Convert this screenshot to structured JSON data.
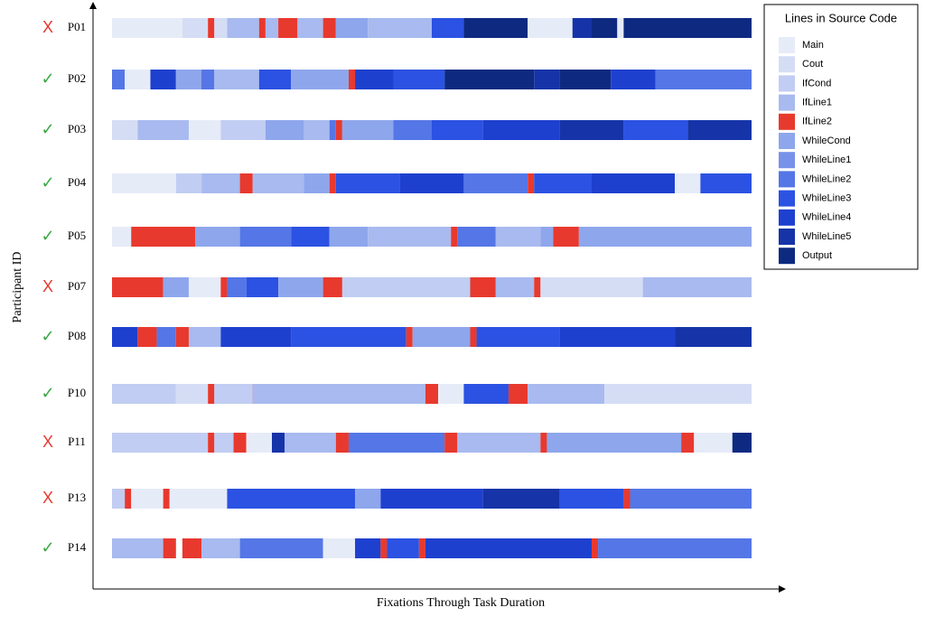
{
  "chart_data": {
    "type": "sequence",
    "xlabel": "Fixations Through Task Duration",
    "ylabel": "Participant ID",
    "xlim": [
      0,
      100
    ],
    "legend": {
      "title": "Lines in Source Code",
      "items": [
        {
          "name": "Main",
          "color": "#e6ebf8"
        },
        {
          "name": "Cout",
          "color": "#d5ddf5"
        },
        {
          "name": "IfCond",
          "color": "#c1cdf2"
        },
        {
          "name": "IfLine1",
          "color": "#a8baef"
        },
        {
          "name": "IfLine2",
          "color": "#e8392e"
        },
        {
          "name": "WhileCond",
          "color": "#8ea6ec"
        },
        {
          "name": "WhileLine1",
          "color": "#7892ea"
        },
        {
          "name": "WhileLine2",
          "color": "#5476e6"
        },
        {
          "name": "WhileLine3",
          "color": "#2b52e2"
        },
        {
          "name": "WhileLine4",
          "color": "#1e40cf"
        },
        {
          "name": "WhileLine5",
          "color": "#1634a8"
        },
        {
          "name": "Output",
          "color": "#0d2a80"
        }
      ]
    },
    "participants": [
      {
        "id": "P01",
        "result": "X",
        "segments": [
          [
            0,
            0,
            11
          ],
          [
            1,
            11,
            15
          ],
          [
            4,
            15,
            16
          ],
          [
            1,
            16,
            18
          ],
          [
            3,
            18,
            23
          ],
          [
            4,
            23,
            24
          ],
          [
            3,
            24,
            26
          ],
          [
            4,
            26,
            29
          ],
          [
            3,
            29,
            33
          ],
          [
            4,
            33,
            35
          ],
          [
            5,
            35,
            40
          ],
          [
            3,
            40,
            50
          ],
          [
            8,
            50,
            55
          ],
          [
            11,
            55,
            65
          ],
          [
            0,
            65,
            72
          ],
          [
            10,
            72,
            75
          ],
          [
            11,
            75,
            79
          ],
          [
            0,
            79,
            80
          ],
          [
            11,
            80,
            100
          ]
        ]
      },
      {
        "id": "P02",
        "result": "✓",
        "segments": [
          [
            7,
            0,
            2
          ],
          [
            0,
            2,
            6
          ],
          [
            9,
            6,
            10
          ],
          [
            5,
            10,
            14
          ],
          [
            4,
            14,
            15
          ],
          [
            7,
            14,
            16
          ],
          [
            3,
            16,
            23
          ],
          [
            8,
            23,
            28
          ],
          [
            5,
            28,
            37
          ],
          [
            4,
            37,
            38
          ],
          [
            9,
            38,
            44
          ],
          [
            8,
            44,
            52
          ],
          [
            11,
            52,
            66
          ],
          [
            10,
            66,
            70
          ],
          [
            11,
            70,
            78
          ],
          [
            9,
            78,
            85
          ],
          [
            7,
            85,
            100
          ]
        ]
      },
      {
        "id": "P03",
        "result": "✓",
        "segments": [
          [
            1,
            0,
            4
          ],
          [
            3,
            4,
            12
          ],
          [
            0,
            12,
            17
          ],
          [
            2,
            17,
            24
          ],
          [
            5,
            24,
            30
          ],
          [
            3,
            30,
            34
          ],
          [
            7,
            34,
            35
          ],
          [
            4,
            35,
            36
          ],
          [
            5,
            36,
            44
          ],
          [
            7,
            44,
            50
          ],
          [
            8,
            50,
            58
          ],
          [
            9,
            58,
            70
          ],
          [
            10,
            70,
            80
          ],
          [
            8,
            80,
            90
          ],
          [
            10,
            90,
            100
          ]
        ]
      },
      {
        "id": "P04",
        "result": "✓",
        "segments": [
          [
            0,
            0,
            10
          ],
          [
            2,
            10,
            14
          ],
          [
            3,
            14,
            20
          ],
          [
            4,
            20,
            22
          ],
          [
            3,
            22,
            30
          ],
          [
            5,
            30,
            34
          ],
          [
            4,
            34,
            35
          ],
          [
            8,
            35,
            45
          ],
          [
            9,
            45,
            55
          ],
          [
            7,
            55,
            65
          ],
          [
            4,
            65,
            66
          ],
          [
            8,
            66,
            75
          ],
          [
            9,
            75,
            88
          ],
          [
            0,
            88,
            92
          ],
          [
            8,
            92,
            100
          ]
        ]
      },
      {
        "id": "P05",
        "result": "✓",
        "segments": [
          [
            0,
            0,
            3
          ],
          [
            4,
            3,
            13
          ],
          [
            5,
            13,
            20
          ],
          [
            7,
            20,
            28
          ],
          [
            8,
            28,
            34
          ],
          [
            5,
            34,
            40
          ],
          [
            3,
            40,
            53
          ],
          [
            4,
            53,
            54
          ],
          [
            7,
            54,
            60
          ],
          [
            3,
            60,
            67
          ],
          [
            5,
            67,
            69
          ],
          [
            4,
            69,
            73
          ],
          [
            5,
            73,
            100
          ]
        ]
      },
      {
        "id": "P07",
        "result": "X",
        "segments": [
          [
            4,
            0,
            8
          ],
          [
            5,
            8,
            12
          ],
          [
            0,
            12,
            17
          ],
          [
            4,
            17,
            18
          ],
          [
            7,
            18,
            21
          ],
          [
            8,
            21,
            26
          ],
          [
            5,
            26,
            33
          ],
          [
            4,
            33,
            36
          ],
          [
            2,
            36,
            56
          ],
          [
            4,
            56,
            60
          ],
          [
            3,
            60,
            66
          ],
          [
            4,
            66,
            67
          ],
          [
            1,
            67,
            83
          ],
          [
            3,
            83,
            100
          ]
        ]
      },
      {
        "id": "P08",
        "result": "✓",
        "segments": [
          [
            9,
            0,
            4
          ],
          [
            4,
            4,
            7
          ],
          [
            7,
            7,
            10
          ],
          [
            4,
            10,
            12
          ],
          [
            3,
            12,
            17
          ],
          [
            9,
            17,
            28
          ],
          [
            4,
            28,
            29
          ],
          [
            8,
            28,
            46
          ],
          [
            4,
            46,
            47
          ],
          [
            5,
            47,
            56
          ],
          [
            4,
            56,
            57
          ],
          [
            8,
            57,
            70
          ],
          [
            9,
            70,
            88
          ],
          [
            10,
            88,
            100
          ]
        ]
      },
      {
        "id": "P10",
        "result": "✓",
        "segments": [
          [
            2,
            0,
            10
          ],
          [
            1,
            10,
            15
          ],
          [
            4,
            15,
            16
          ],
          [
            2,
            16,
            22
          ],
          [
            4,
            22,
            23
          ],
          [
            3,
            22,
            49
          ],
          [
            4,
            49,
            51
          ],
          [
            0,
            51,
            55
          ],
          [
            8,
            55,
            62
          ],
          [
            4,
            62,
            65
          ],
          [
            3,
            65,
            77
          ],
          [
            1,
            77,
            100
          ]
        ]
      },
      {
        "id": "P11",
        "result": "X",
        "segments": [
          [
            2,
            0,
            15
          ],
          [
            4,
            15,
            16
          ],
          [
            2,
            16,
            19
          ],
          [
            4,
            19,
            21
          ],
          [
            0,
            21,
            25
          ],
          [
            10,
            25,
            27
          ],
          [
            3,
            27,
            35
          ],
          [
            4,
            35,
            37
          ],
          [
            7,
            37,
            52
          ],
          [
            4,
            52,
            54
          ],
          [
            3,
            54,
            67
          ],
          [
            4,
            67,
            68
          ],
          [
            5,
            68,
            89
          ],
          [
            4,
            89,
            91
          ],
          [
            0,
            91,
            97
          ],
          [
            11,
            97,
            100
          ]
        ]
      },
      {
        "id": "P13",
        "result": "X",
        "segments": [
          [
            2,
            0,
            2
          ],
          [
            4,
            2,
            3
          ],
          [
            0,
            3,
            8
          ],
          [
            4,
            8,
            9
          ],
          [
            0,
            9,
            18
          ],
          [
            8,
            18,
            38
          ],
          [
            5,
            38,
            42
          ],
          [
            9,
            42,
            58
          ],
          [
            10,
            58,
            70
          ],
          [
            8,
            70,
            80
          ],
          [
            4,
            80,
            81
          ],
          [
            7,
            81,
            100
          ]
        ]
      },
      {
        "id": "P14",
        "result": "✓",
        "segments": [
          [
            3,
            0,
            8
          ],
          [
            4,
            8,
            10
          ],
          [
            4,
            11,
            14
          ],
          [
            3,
            14,
            20
          ],
          [
            7,
            20,
            33
          ],
          [
            0,
            33,
            38
          ],
          [
            9,
            38,
            42
          ],
          [
            4,
            42,
            43
          ],
          [
            8,
            43,
            48
          ],
          [
            4,
            48,
            49
          ],
          [
            9,
            49,
            75
          ],
          [
            4,
            75,
            76
          ],
          [
            7,
            76,
            100
          ]
        ]
      }
    ]
  }
}
